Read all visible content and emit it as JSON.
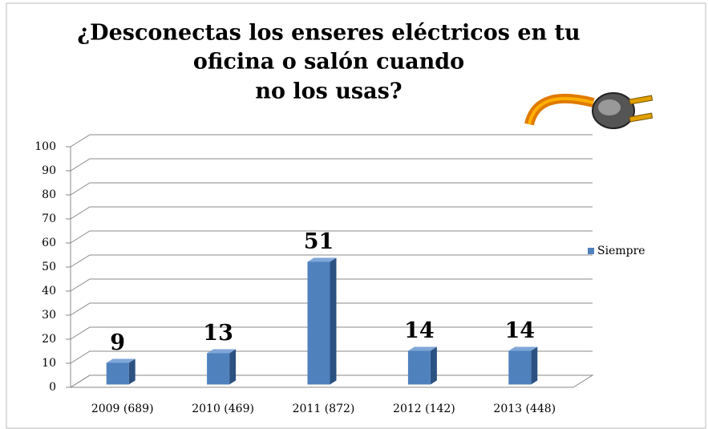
{
  "chart_data": {
    "type": "bar3d",
    "title": [
      "¿Desconectas los enseres eléctricos en tu",
      "oficina o salón cuando",
      "no los usas?"
    ],
    "categories": [
      "2009 (689)",
      "2010 (469)",
      "2011 (872)",
      "2012 (142)",
      "2013 (448)"
    ],
    "series": [
      {
        "name": "Siempre",
        "color": "#4f81bd",
        "values": [
          9,
          13,
          51,
          14,
          14
        ]
      }
    ],
    "ylim": [
      0,
      100
    ],
    "yticks": [
      0,
      10,
      20,
      30,
      40,
      50,
      60,
      70,
      80,
      90,
      100
    ],
    "grid": true,
    "legend": "right"
  }
}
